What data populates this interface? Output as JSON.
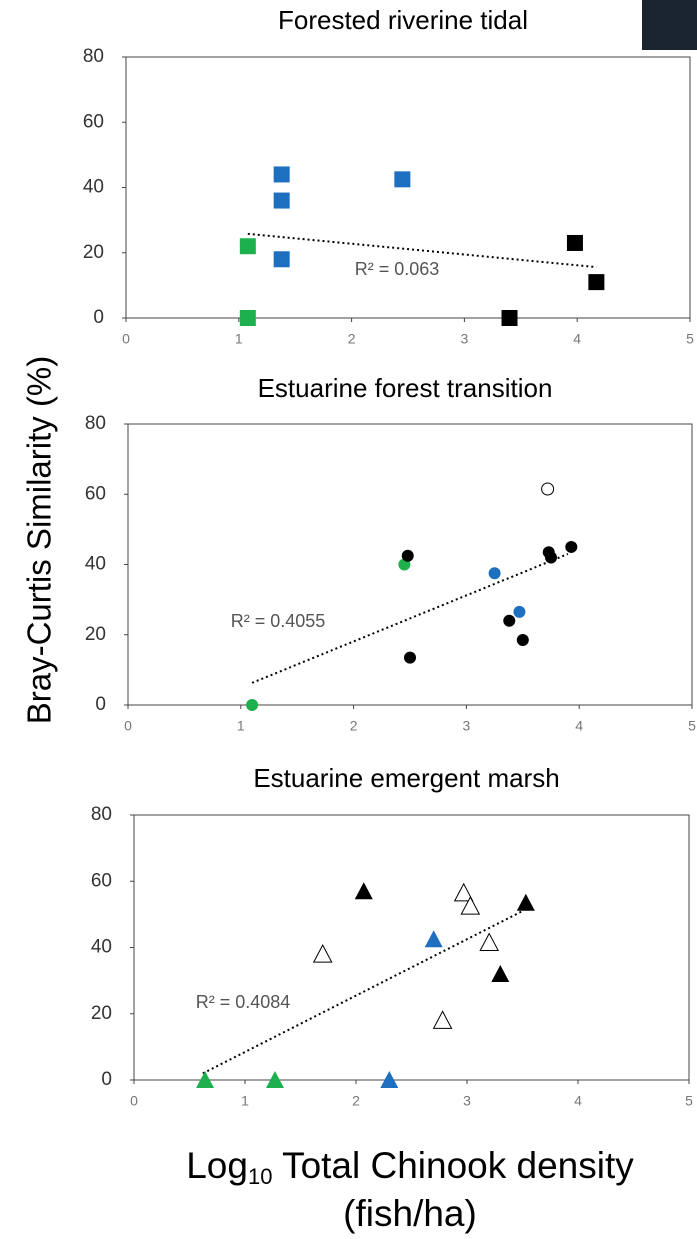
{
  "ylabel": "Bray-Curtis Similarity (%)",
  "xlabel": {
    "main": "Log",
    "subscript": "10",
    "rest": " Total Chinook density",
    "line2": "(fish/ha)"
  },
  "chart_data": [
    {
      "type": "scatter",
      "title": "Forested riverine tidal",
      "xlim": [
        0,
        5
      ],
      "ylim": [
        0,
        80
      ],
      "xticks": [
        0,
        1,
        2,
        3,
        4,
        5
      ],
      "yticks": [
        0,
        20,
        40,
        60,
        80
      ],
      "annotation": "R² = 0.063",
      "series": [
        {
          "color": "#1f6fc0",
          "marker": "square",
          "filled": true,
          "x": [
            1.38,
            1.38,
            1.38,
            2.45
          ],
          "values": [
            44,
            36,
            18,
            42.5
          ]
        },
        {
          "color": "#1eb04f",
          "marker": "square",
          "filled": true,
          "x": [
            1.08,
            1.08
          ],
          "values": [
            22,
            0
          ]
        },
        {
          "color": "#000000",
          "marker": "square",
          "filled": true,
          "x": [
            3.4,
            3.98,
            4.17
          ],
          "values": [
            0,
            23,
            11
          ]
        }
      ],
      "trendline": {
        "x": [
          1.08,
          4.17
        ],
        "values": [
          25.8,
          15.6
        ]
      }
    },
    {
      "type": "scatter",
      "title": "Estuarine forest transition",
      "xlim": [
        0,
        5
      ],
      "ylim": [
        0,
        80
      ],
      "xticks": [
        0,
        1,
        2,
        3,
        4,
        5
      ],
      "yticks": [
        0,
        20,
        40,
        60,
        80
      ],
      "annotation": "R² = 0.4055",
      "series": [
        {
          "color": "#1eb04f",
          "marker": "circle",
          "filled": true,
          "x": [
            1.1,
            2.45
          ],
          "values": [
            0,
            40
          ]
        },
        {
          "color": "#1f6fc0",
          "marker": "circle",
          "filled": true,
          "x": [
            3.25,
            3.47
          ],
          "values": [
            37.5,
            26.5
          ]
        },
        {
          "color": "#000000",
          "marker": "circle",
          "filled": true,
          "x": [
            2.48,
            2.5,
            3.38,
            3.5,
            3.73,
            3.75,
            3.93
          ],
          "values": [
            42.5,
            13.5,
            24,
            18.5,
            43.5,
            42,
            45
          ]
        },
        {
          "color": "#000000",
          "marker": "circle",
          "filled": false,
          "x": [
            3.72
          ],
          "values": [
            61.5
          ]
        }
      ],
      "trendline": {
        "x": [
          1.1,
          3.9
        ],
        "values": [
          6.3,
          43
        ]
      }
    },
    {
      "type": "scatter",
      "title": "Estuarine emergent marsh",
      "xlim": [
        0,
        5
      ],
      "ylim": [
        0,
        80
      ],
      "xticks": [
        0,
        1,
        2,
        3,
        4,
        5
      ],
      "yticks": [
        0,
        20,
        40,
        60,
        80
      ],
      "annotation": "R² = 0.4084",
      "series": [
        {
          "color": "#1eb04f",
          "marker": "triangle",
          "filled": true,
          "x": [
            0.64,
            1.27
          ],
          "values": [
            0,
            0
          ]
        },
        {
          "color": "#1f6fc0",
          "marker": "triangle",
          "filled": true,
          "x": [
            2.3,
            2.7
          ],
          "values": [
            0,
            42.5
          ]
        },
        {
          "color": "#000000",
          "marker": "triangle",
          "filled": true,
          "x": [
            2.07,
            3.3,
            3.53
          ],
          "values": [
            57,
            32,
            53.5
          ]
        },
        {
          "color": "#000000",
          "marker": "triangle",
          "filled": false,
          "x": [
            1.7,
            2.78,
            2.97,
            3.03,
            3.2
          ],
          "values": [
            38,
            18,
            56.5,
            52.5,
            41.5
          ]
        }
      ],
      "trendline": {
        "x": [
          0.62,
          3.5
        ],
        "values": [
          2,
          51
        ]
      }
    }
  ]
}
